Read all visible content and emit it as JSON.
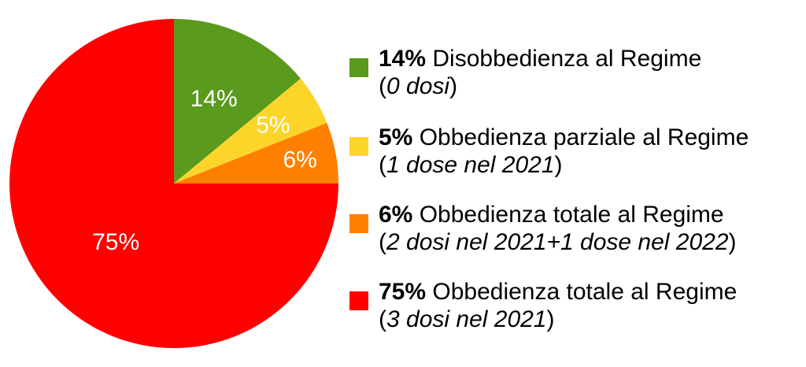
{
  "chart_data": {
    "type": "pie",
    "title": "",
    "slices": [
      {
        "value": 14,
        "label": "14%",
        "color": "#5a9a1c",
        "legend": {
          "percent": "14%",
          "text": " Disobbedienza al Regime",
          "open": "(",
          "detail": "0 dosi",
          "close": ")"
        }
      },
      {
        "value": 5,
        "label": "5%",
        "color": "#fdd52a",
        "legend": {
          "percent": "5%",
          "text": " Obbedienza parziale al Regime",
          "open": "(",
          "detail": "1 dose nel 2021",
          "close": ")"
        }
      },
      {
        "value": 6,
        "label": "6%",
        "color": "#ff7f00",
        "legend": {
          "percent": "6%",
          "text": " Obbedienza totale al Regime",
          "open": "(",
          "detail": "2 dosi nel 2021+1 dose nel 2022",
          "close": ")"
        }
      },
      {
        "value": 75,
        "label": "75%",
        "color": "#fe0000",
        "legend": {
          "percent": "75%",
          "text": " Obbedienza totale al Regime",
          "open": "(",
          "detail": "3 dosi nel 2021",
          "close": ")"
        }
      }
    ],
    "start_angle": "12 o'clock",
    "direction": "clockwise",
    "legend_position": "right"
  }
}
